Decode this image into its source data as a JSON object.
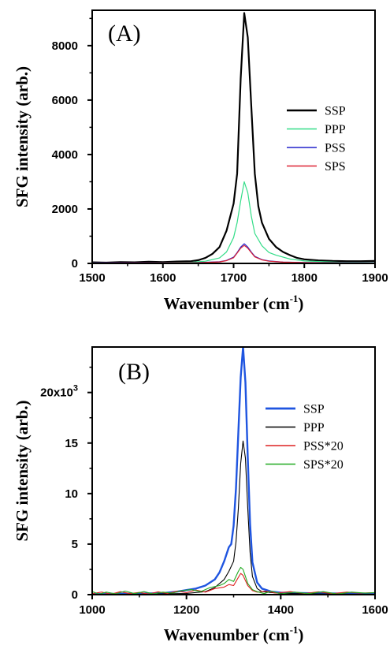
{
  "chart_data": [
    {
      "type": "line",
      "panel_label": "(A)",
      "xlabel": "Wavenumber (cm",
      "xlabel_sup": "-1",
      "xlabel_close": ")",
      "ylabel": "SFG intensity (arb.)",
      "xlim": [
        1500,
        1900
      ],
      "ylim": [
        0,
        9300
      ],
      "xticks": [
        "1500",
        "1600",
        "1700",
        "1800",
        "1900"
      ],
      "yticks": [
        "0",
        "2000",
        "4000",
        "6000",
        "8000"
      ],
      "xtick_values": [
        1500,
        1600,
        1700,
        1800,
        1900
      ],
      "ytick_values": [
        0,
        2000,
        4000,
        6000,
        8000
      ],
      "legend_position": "right",
      "series": [
        {
          "name": "SSP",
          "color": "#000000",
          "width": 2.2,
          "x": [
            1500,
            1520,
            1540,
            1560,
            1580,
            1600,
            1620,
            1640,
            1650,
            1660,
            1670,
            1680,
            1690,
            1700,
            1705,
            1710,
            1715,
            1720,
            1725,
            1730,
            1735,
            1740,
            1750,
            1760,
            1770,
            1780,
            1790,
            1800,
            1820,
            1840,
            1860,
            1880,
            1900
          ],
          "y": [
            40,
            30,
            50,
            40,
            60,
            50,
            70,
            80,
            120,
            200,
            350,
            600,
            1200,
            2200,
            3300,
            6800,
            9200,
            8300,
            5800,
            3300,
            2100,
            1500,
            900,
            600,
            420,
            300,
            200,
            150,
            110,
            90,
            80,
            80,
            90
          ]
        },
        {
          "name": "PPP",
          "color": "#33dd88",
          "width": 1.2,
          "x": [
            1500,
            1550,
            1600,
            1640,
            1660,
            1680,
            1690,
            1700,
            1705,
            1710,
            1715,
            1720,
            1725,
            1730,
            1740,
            1750,
            1760,
            1780,
            1800,
            1850,
            1900
          ],
          "y": [
            20,
            20,
            25,
            40,
            80,
            200,
            420,
            950,
            1500,
            2300,
            3000,
            2600,
            1750,
            1100,
            650,
            400,
            300,
            160,
            90,
            40,
            30
          ]
        },
        {
          "name": "PSS",
          "color": "#2222cc",
          "width": 1.2,
          "x": [
            1500,
            1550,
            1600,
            1650,
            1680,
            1690,
            1700,
            1705,
            1710,
            1715,
            1720,
            1725,
            1730,
            1740,
            1750,
            1770,
            1800,
            1850,
            1900
          ],
          "y": [
            20,
            25,
            20,
            30,
            60,
            110,
            230,
            400,
            600,
            720,
            600,
            420,
            260,
            140,
            90,
            50,
            35,
            25,
            20
          ]
        },
        {
          "name": "SPS",
          "color": "#dd2233",
          "width": 1.2,
          "x": [
            1500,
            1550,
            1600,
            1650,
            1680,
            1690,
            1700,
            1705,
            1710,
            1715,
            1720,
            1725,
            1730,
            1740,
            1750,
            1770,
            1800,
            1850,
            1900
          ],
          "y": [
            15,
            20,
            20,
            25,
            55,
            100,
            210,
            380,
            560,
            660,
            560,
            400,
            240,
            130,
            80,
            45,
            30,
            20,
            15
          ]
        }
      ]
    },
    {
      "type": "line",
      "panel_label": "(B)",
      "xlabel": "Wavenumber (cm",
      "xlabel_sup": "-1",
      "xlabel_close": ")",
      "ylabel": "SFG intensity (arb.)",
      "xlim": [
        1000,
        1600
      ],
      "ylim": [
        0,
        24500
      ],
      "xticks": [
        "1000",
        "1200",
        "1400",
        "1600"
      ],
      "yticks": [
        "0",
        "5",
        "10",
        "15",
        "20x10"
      ],
      "ytick_top_sup": "3",
      "xtick_values": [
        1000,
        1200,
        1400,
        1600
      ],
      "ytick_values": [
        0,
        5000,
        10000,
        15000,
        20000
      ],
      "legend_position": "right",
      "series": [
        {
          "name": "SSP",
          "color": "#1f55e0",
          "width": 2.4,
          "x": [
            1000,
            1050,
            1100,
            1150,
            1180,
            1200,
            1220,
            1240,
            1260,
            1270,
            1280,
            1290,
            1295,
            1300,
            1305,
            1310,
            1315,
            1320,
            1325,
            1330,
            1335,
            1340,
            1350,
            1360,
            1380,
            1400,
            1450,
            1500,
            1550,
            1600
          ],
          "y": [
            50,
            80,
            100,
            150,
            300,
            450,
            600,
            900,
            1500,
            2200,
            3300,
            4700,
            5000,
            6800,
            10500,
            16000,
            21500,
            24500,
            21000,
            13500,
            7000,
            3200,
            1200,
            600,
            300,
            200,
            150,
            120,
            100,
            100
          ]
        },
        {
          "name": "PPP",
          "color": "#000000",
          "width": 1.1,
          "x": [
            1000,
            1100,
            1200,
            1240,
            1260,
            1280,
            1290,
            1300,
            1305,
            1310,
            1315,
            1320,
            1325,
            1330,
            1335,
            1340,
            1350,
            1360,
            1400,
            1500,
            1600
          ],
          "y": [
            30,
            50,
            120,
            300,
            700,
            1500,
            2300,
            3300,
            5200,
            8500,
            13000,
            15200,
            13500,
            8500,
            4200,
            1800,
            600,
            300,
            120,
            60,
            40
          ]
        },
        {
          "name": "PSS*20",
          "color": "#dd2222",
          "width": 1.1,
          "x": [
            1000,
            1020,
            1040,
            1060,
            1080,
            1100,
            1120,
            1140,
            1160,
            1180,
            1200,
            1220,
            1240,
            1260,
            1280,
            1290,
            1300,
            1305,
            1310,
            1315,
            1320,
            1325,
            1330,
            1340,
            1350,
            1370,
            1390,
            1420,
            1450,
            1480,
            1510,
            1540,
            1570,
            1600
          ],
          "y": [
            100,
            250,
            50,
            300,
            100,
            220,
            60,
            280,
            120,
            350,
            200,
            450,
            250,
            600,
            750,
            1000,
            900,
            1300,
            1700,
            2100,
            1900,
            1400,
            900,
            400,
            250,
            350,
            150,
            300,
            120,
            280,
            100,
            250,
            150,
            200
          ]
        },
        {
          "name": "SPS*20",
          "color": "#22aa22",
          "width": 1.1,
          "x": [
            1000,
            1015,
            1030,
            1050,
            1070,
            1090,
            1110,
            1130,
            1150,
            1170,
            1190,
            1210,
            1230,
            1250,
            1270,
            1280,
            1290,
            1300,
            1305,
            1310,
            1315,
            1320,
            1325,
            1330,
            1340,
            1350,
            1365,
            1380,
            1400,
            1430,
            1460,
            1490,
            1520,
            1550,
            1580,
            1600
          ],
          "y": [
            300,
            50,
            250,
            80,
            350,
            100,
            300,
            60,
            250,
            150,
            400,
            500,
            300,
            700,
            900,
            1100,
            1500,
            1300,
            1800,
            2300,
            2700,
            2500,
            1800,
            1100,
            500,
            300,
            100,
            350,
            80,
            250,
            100,
            300,
            60,
            250,
            150,
            200
          ]
        }
      ]
    }
  ]
}
